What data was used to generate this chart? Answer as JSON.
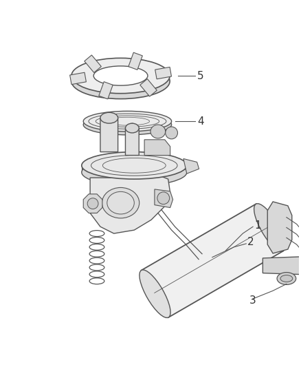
{
  "bg_color": "#ffffff",
  "line_color": "#555555",
  "label_color": "#333333",
  "figsize": [
    4.38,
    5.33
  ],
  "dpi": 100
}
